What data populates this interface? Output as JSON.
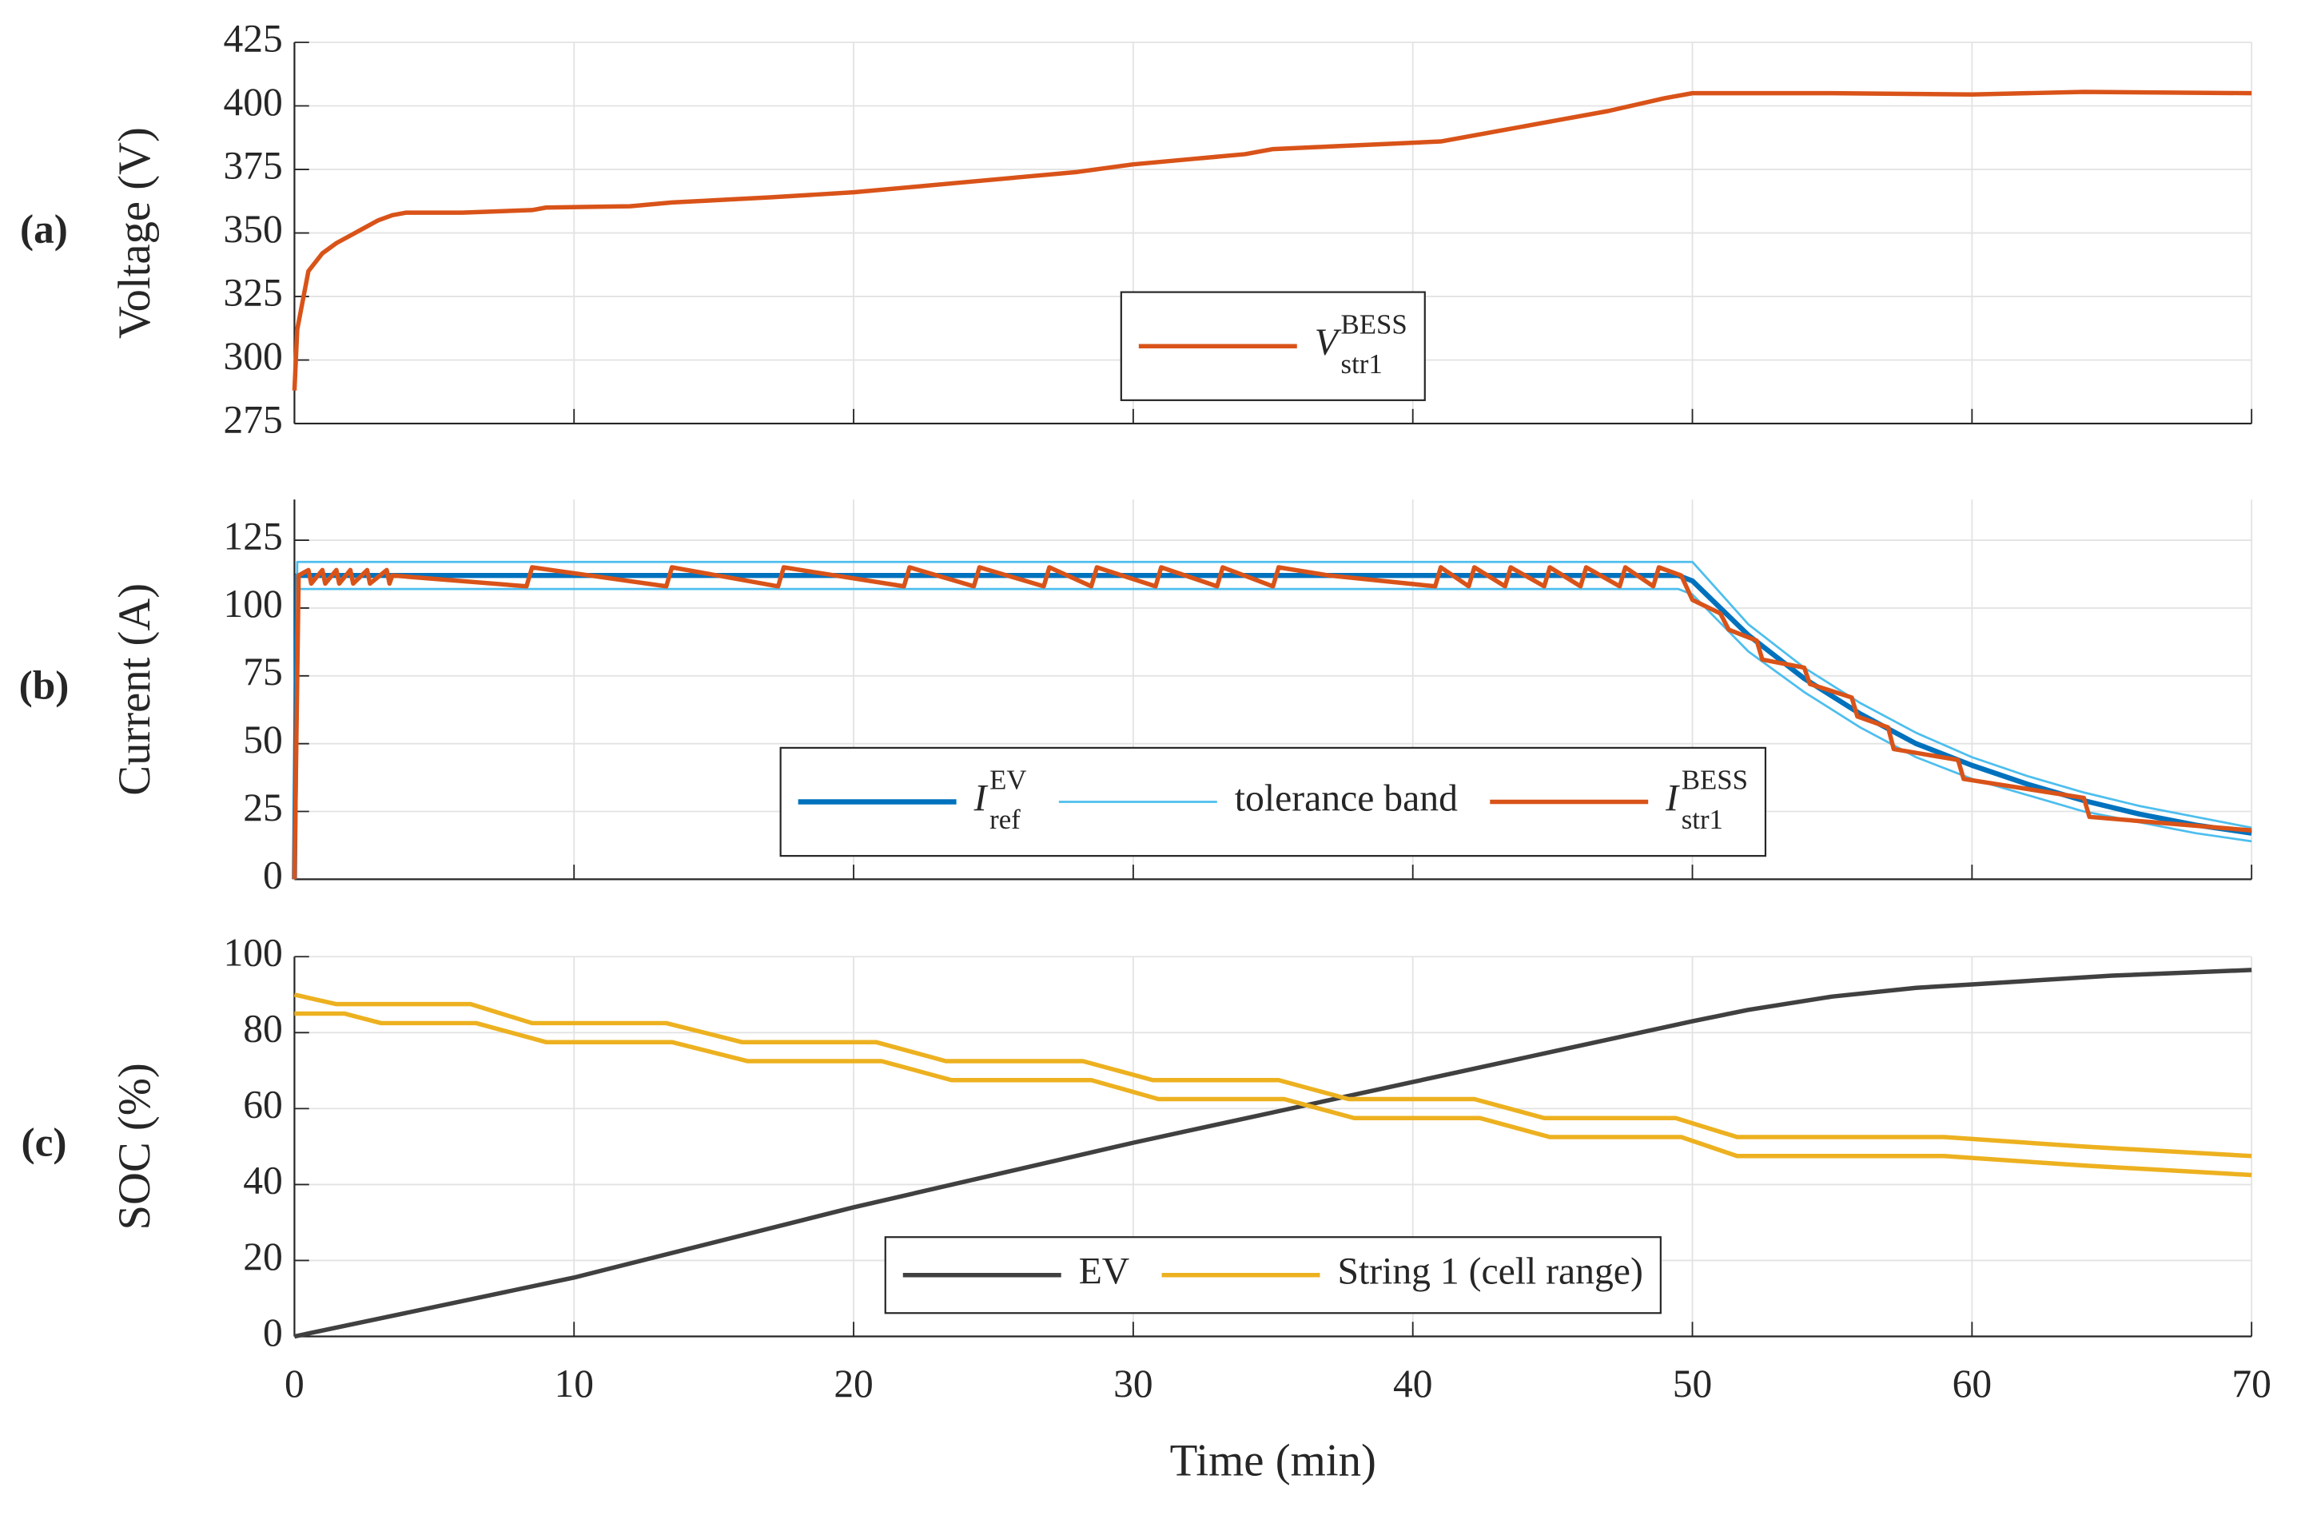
{
  "chart_data": [
    {
      "type": "line",
      "annotation": "(a)",
      "ylabel": "Voltage (V)",
      "xlim": [
        0,
        70
      ],
      "xticks": [
        0,
        10,
        20,
        30,
        40,
        50,
        60,
        70
      ],
      "ylim": [
        275,
        425
      ],
      "yticks": [
        275,
        300,
        325,
        350,
        375,
        400,
        425
      ],
      "grid": true,
      "legend": "south",
      "series": [
        {
          "name": "V",
          "name_sup": "BESS",
          "name_sub": "str1",
          "color": "#d95319",
          "width": 3,
          "x": [
            0,
            0.1,
            0.5,
            1,
            1.5,
            2,
            2.5,
            3,
            3.5,
            4,
            6,
            8.5,
            9,
            12,
            13.5,
            17,
            20,
            22,
            24,
            26,
            28,
            30,
            32,
            34,
            35,
            37,
            39,
            41,
            43,
            45,
            47,
            49,
            50,
            55,
            60,
            64,
            70
          ],
          "values": [
            288,
            312,
            335,
            342,
            346,
            349,
            352,
            355,
            357,
            358,
            358,
            359,
            360,
            360.5,
            362,
            364,
            366,
            368,
            370,
            372,
            374,
            377,
            379,
            381,
            383,
            384,
            385,
            386,
            390,
            394,
            398,
            403,
            405,
            405,
            404.5,
            405.5,
            405
          ]
        }
      ]
    },
    {
      "type": "line",
      "annotation": "(b)",
      "ylabel": "Current (A)",
      "xlim": [
        0,
        70
      ],
      "xticks": [
        0,
        10,
        20,
        30,
        40,
        50,
        60,
        70
      ],
      "ylim": [
        0,
        140
      ],
      "yticks": [
        0,
        25,
        50,
        75,
        100,
        125
      ],
      "grid": true,
      "legend": "south",
      "series": [
        {
          "name": "I",
          "name_sup": "EV",
          "name_sub": "ref",
          "color": "#0072bd",
          "width": 3.5,
          "x": [
            0,
            0.1,
            49.5,
            50,
            52,
            54,
            56,
            58,
            60,
            62,
            64,
            66,
            68,
            70
          ],
          "values": [
            0,
            112,
            112,
            110,
            90,
            74,
            61,
            50,
            42,
            35,
            29,
            24,
            20,
            17
          ]
        },
        {
          "name": "tolerance band",
          "color": "#4dbeee",
          "width": 1.5,
          "x": [
            0,
            0.1,
            49.5,
            50,
            52,
            54,
            56,
            58,
            60,
            62,
            64,
            66,
            68,
            70
          ],
          "values": [
            0,
            117,
            117,
            117,
            94,
            78,
            65,
            54,
            45,
            38,
            32,
            27,
            23,
            19
          ],
          "lower": [
            0,
            107,
            107,
            105,
            84,
            69,
            56,
            45,
            37,
            31,
            25,
            21,
            17,
            14
          ]
        },
        {
          "name": "I",
          "name_sup": "BESS",
          "name_sub": "str1",
          "color": "#d95319",
          "width": 3,
          "x": [
            0,
            0.15,
            0.5,
            0.6,
            1,
            1.1,
            1.5,
            1.6,
            2,
            2.1,
            2.6,
            2.7,
            3.3,
            3.4,
            3.5,
            8.3,
            8.5,
            13.3,
            13.5,
            17.3,
            17.5,
            21.8,
            22,
            24.3,
            24.5,
            26.8,
            27,
            28.5,
            28.7,
            30.8,
            31,
            33,
            33.2,
            35,
            35.2,
            37,
            40.8,
            41,
            42,
            42.2,
            43.3,
            43.5,
            44.7,
            44.9,
            46,
            46.2,
            47.4,
            47.6,
            48.6,
            48.8,
            49.6,
            50,
            51,
            51.3,
            52.3,
            52.5,
            54,
            54.2,
            55.7,
            55.9,
            57,
            57.2,
            59.5,
            59.7,
            64,
            64.2,
            70
          ],
          "values": [
            0,
            112,
            114,
            109,
            114,
            109,
            114,
            109,
            114,
            109,
            114,
            109,
            114,
            109,
            112,
            108,
            115,
            108,
            115,
            108,
            115,
            108,
            115,
            108,
            115,
            108,
            115,
            108,
            115,
            108,
            115,
            108,
            115,
            108,
            115,
            112,
            108,
            115,
            108,
            115,
            108,
            115,
            108,
            115,
            108,
            115,
            108,
            115,
            108,
            115,
            112,
            103,
            98,
            92,
            88,
            81,
            78,
            72,
            67,
            60,
            56,
            48,
            44,
            37,
            30,
            23,
            18
          ]
        }
      ]
    },
    {
      "type": "line",
      "annotation": "(c)",
      "ylabel": "SOC (%)",
      "xlabel": "Time (min)",
      "xlim": [
        0,
        70
      ],
      "xticks": [
        0,
        10,
        20,
        30,
        40,
        50,
        60,
        70
      ],
      "ylim": [
        0,
        100
      ],
      "yticks": [
        0,
        20,
        40,
        60,
        80,
        100
      ],
      "grid": true,
      "legend": "south",
      "series": [
        {
          "name": "EV",
          "color": "#404040",
          "width": 3,
          "x": [
            0,
            10,
            20,
            30,
            35,
            40,
            45,
            50,
            52,
            55,
            58,
            60,
            65,
            70
          ],
          "values": [
            0,
            15.5,
            34,
            51,
            59,
            67,
            75,
            83,
            86,
            89.5,
            91.8,
            92.7,
            95,
            96.5
          ]
        },
        {
          "name": "String 1 (cell range)",
          "color": "#edb120",
          "width": 3,
          "x": [
            0,
            1.5,
            6.3,
            8.5,
            13.3,
            16,
            20.8,
            23.3,
            28.2,
            30.7,
            35.2,
            37.7,
            42.2,
            44.7,
            49.4,
            51.6,
            59,
            64,
            70
          ],
          "values": [
            90,
            87.5,
            87.5,
            82.5,
            82.5,
            77.5,
            77.5,
            72.5,
            72.5,
            67.5,
            67.5,
            62.5,
            62.5,
            57.5,
            57.5,
            52.5,
            52.5,
            50,
            47.5
          ],
          "lower": {
            "x": [
              0,
              1.8,
              3.1,
              6.5,
              9,
              13.5,
              16.2,
              21,
              23.5,
              28.5,
              30.9,
              35.4,
              37.9,
              42.4,
              44.9,
              49.6,
              51.6,
              59,
              64,
              70
            ],
            "values": [
              85,
              85,
              82.5,
              82.5,
              77.5,
              77.5,
              72.5,
              72.5,
              67.5,
              67.5,
              62.5,
              62.5,
              57.5,
              57.5,
              52.5,
              52.5,
              47.5,
              47.5,
              45,
              42.5
            ]
          }
        }
      ]
    }
  ]
}
